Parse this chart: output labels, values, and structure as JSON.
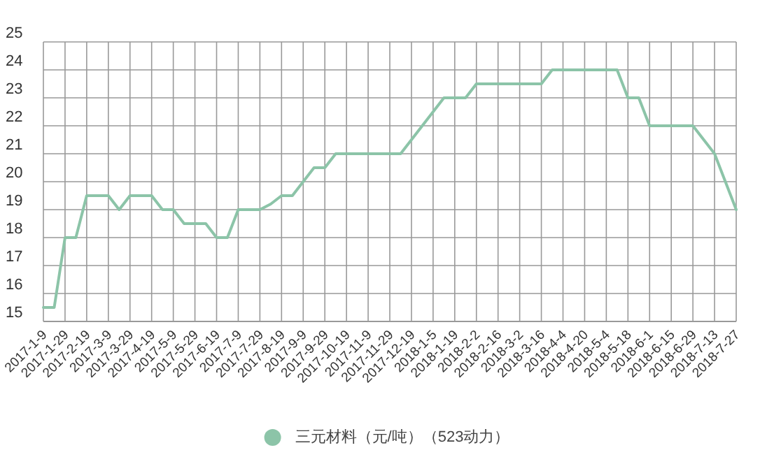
{
  "chart_data": {
    "type": "line",
    "categories": [
      "2017-1-9",
      null,
      "2017-1-29",
      null,
      "2017-2-19",
      null,
      "2017-3-9",
      null,
      "2017-3-29",
      null,
      "2017-4-19",
      null,
      "2017-5-9",
      null,
      "2017-5-29",
      null,
      "2017-6-19",
      null,
      "2017-7-9",
      null,
      "2017-7-29",
      null,
      "2017-8-19",
      null,
      "2017-9-9",
      null,
      "2017-9-29",
      null,
      "2017-10-19",
      null,
      "2017-11-9",
      null,
      "2017-11-29",
      null,
      "2017-12-19",
      null,
      "2018-1-5",
      null,
      "2018-1-19",
      null,
      "2018-2-2",
      null,
      "2018-2-16",
      null,
      "2018-3-2",
      null,
      "2018-3-16",
      null,
      "2018-4-4",
      null,
      "2018-4-20",
      null,
      "2018-5-4",
      null,
      "2018-5-18",
      null,
      "2018-6-1",
      null,
      "2018-6-15",
      null,
      "2018-6-29",
      null,
      "2018-7-13",
      null,
      "2018-7-27"
    ],
    "series": [
      {
        "name": "三元材料（元/吨）（523动力）",
        "color": "#8cc4a8",
        "values": [
          15.5,
          15.5,
          18,
          18,
          19.5,
          19.5,
          19.5,
          19,
          19.5,
          19.5,
          19.5,
          19,
          19,
          18.5,
          18.5,
          18.5,
          18,
          18,
          19,
          19,
          19,
          19.2,
          19.5,
          19.5,
          20,
          20.5,
          20.5,
          21,
          21,
          21,
          21,
          21,
          21,
          21,
          21.5,
          22,
          22.5,
          23,
          23,
          23,
          23.5,
          23.5,
          23.5,
          23.5,
          23.5,
          23.5,
          23.5,
          24,
          24,
          24,
          24,
          24,
          24,
          24,
          23,
          23,
          22,
          22,
          22,
          22,
          22,
          21.5,
          21,
          20,
          19
        ]
      }
    ],
    "ylim": [
      15,
      25
    ],
    "yticks": [
      15,
      16,
      17,
      18,
      19,
      20,
      21,
      22,
      23,
      24,
      25
    ],
    "grid": true,
    "legend": "bottom"
  }
}
